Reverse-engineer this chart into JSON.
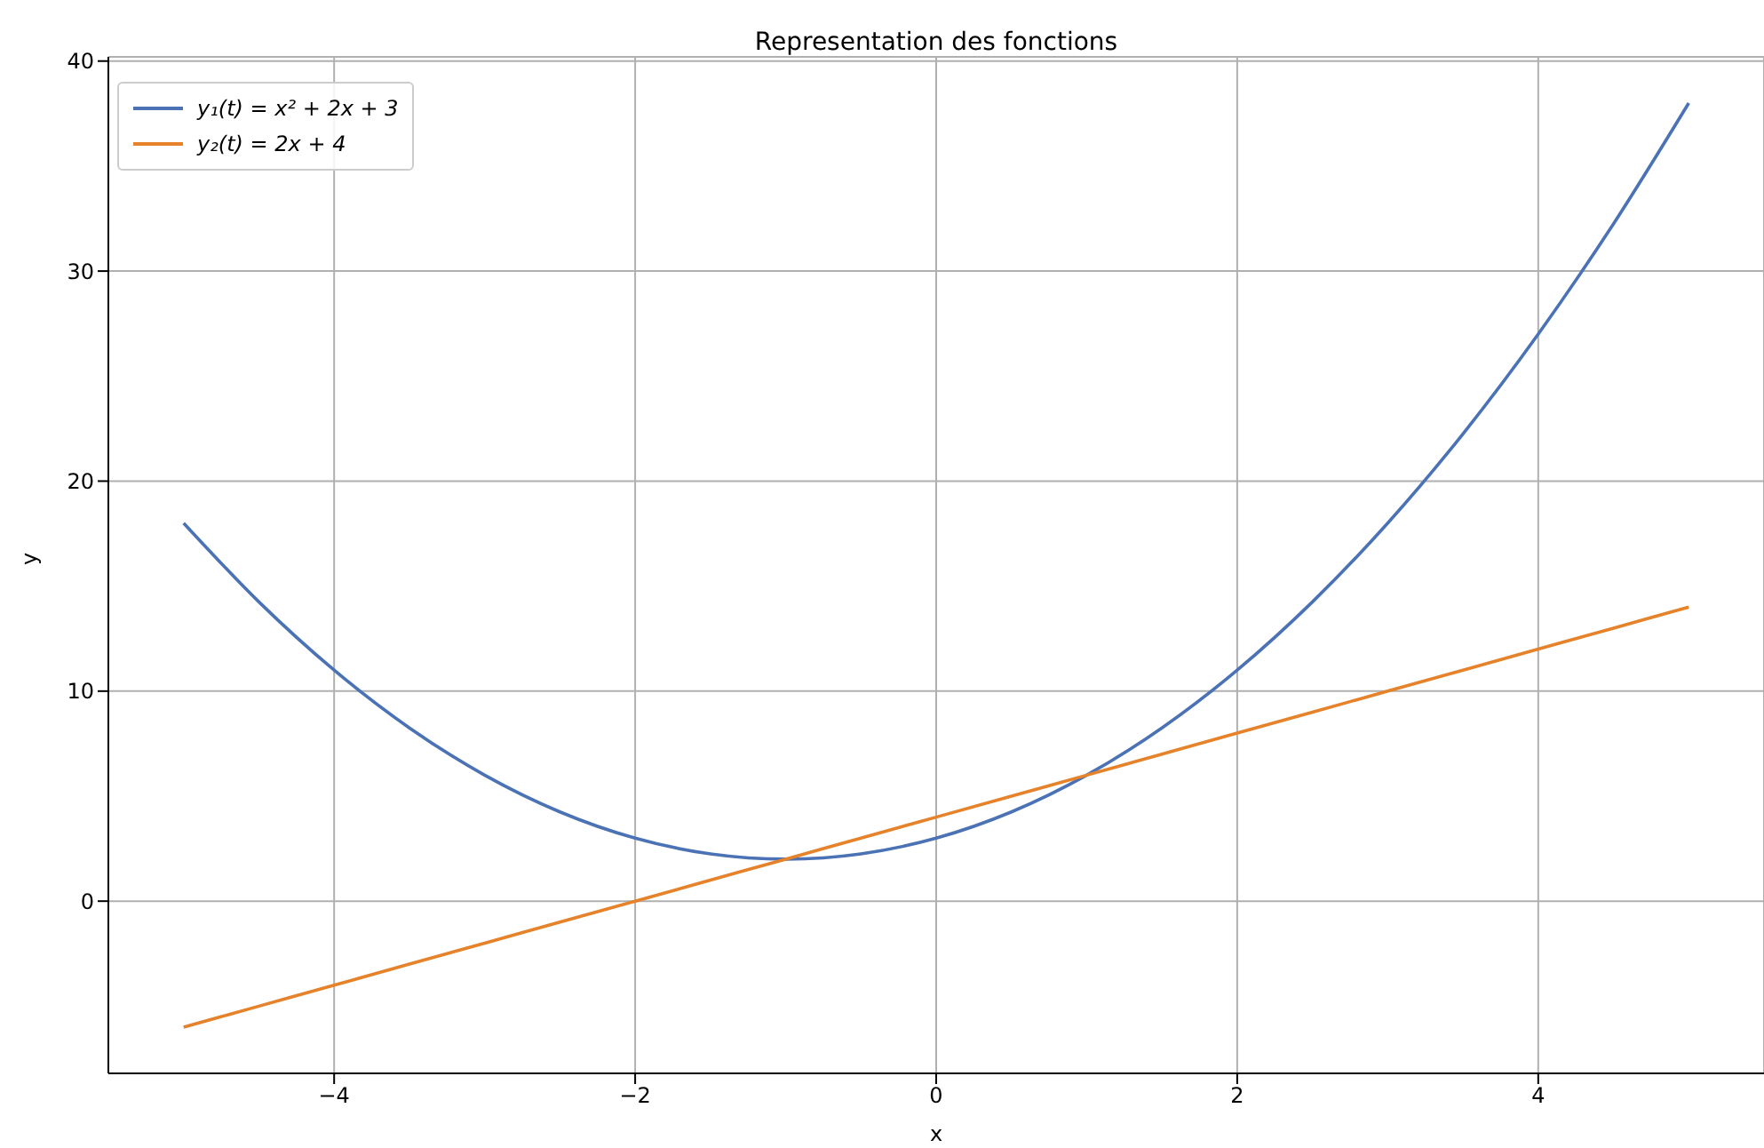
{
  "chart_data": {
    "type": "line",
    "title": "Representation des fonctions",
    "xlabel": "x",
    "ylabel": "y",
    "x": [
      -5,
      -4.5,
      -4,
      -3.5,
      -3,
      -2.5,
      -2,
      -1.5,
      -1,
      -0.5,
      0,
      0.5,
      1,
      1.5,
      2,
      2.5,
      3,
      3.5,
      4,
      4.5,
      5
    ],
    "series": [
      {
        "name": "y₁(t) = x² + 2x + 3",
        "color": "#4a72b5",
        "values": [
          18,
          14.25,
          11,
          8.25,
          6,
          4.25,
          3,
          2.25,
          2,
          2.25,
          3,
          4.25,
          6,
          8.25,
          11,
          14.25,
          18,
          22.25,
          27,
          32.25,
          38
        ]
      },
      {
        "name": "y₂(t) = 2x + 4",
        "color": "#e6822a",
        "values": [
          -6,
          -5,
          -4,
          -3,
          -2,
          -1,
          0,
          1,
          2,
          3,
          4,
          5,
          6,
          7,
          8,
          9,
          10,
          11,
          12,
          13,
          14
        ]
      }
    ],
    "xlim": [
      -5.5,
      5.5
    ],
    "xticks": [
      {
        "value": -4,
        "label": "−4"
      },
      {
        "value": -2,
        "label": "−2"
      },
      0,
      2,
      4
    ],
    "ylim": [
      -8.2,
      40.2
    ],
    "yticks": [
      0,
      10,
      20,
      30,
      40
    ],
    "grid": true,
    "legend": "top left",
    "marker": "none",
    "line_style": "solid"
  }
}
